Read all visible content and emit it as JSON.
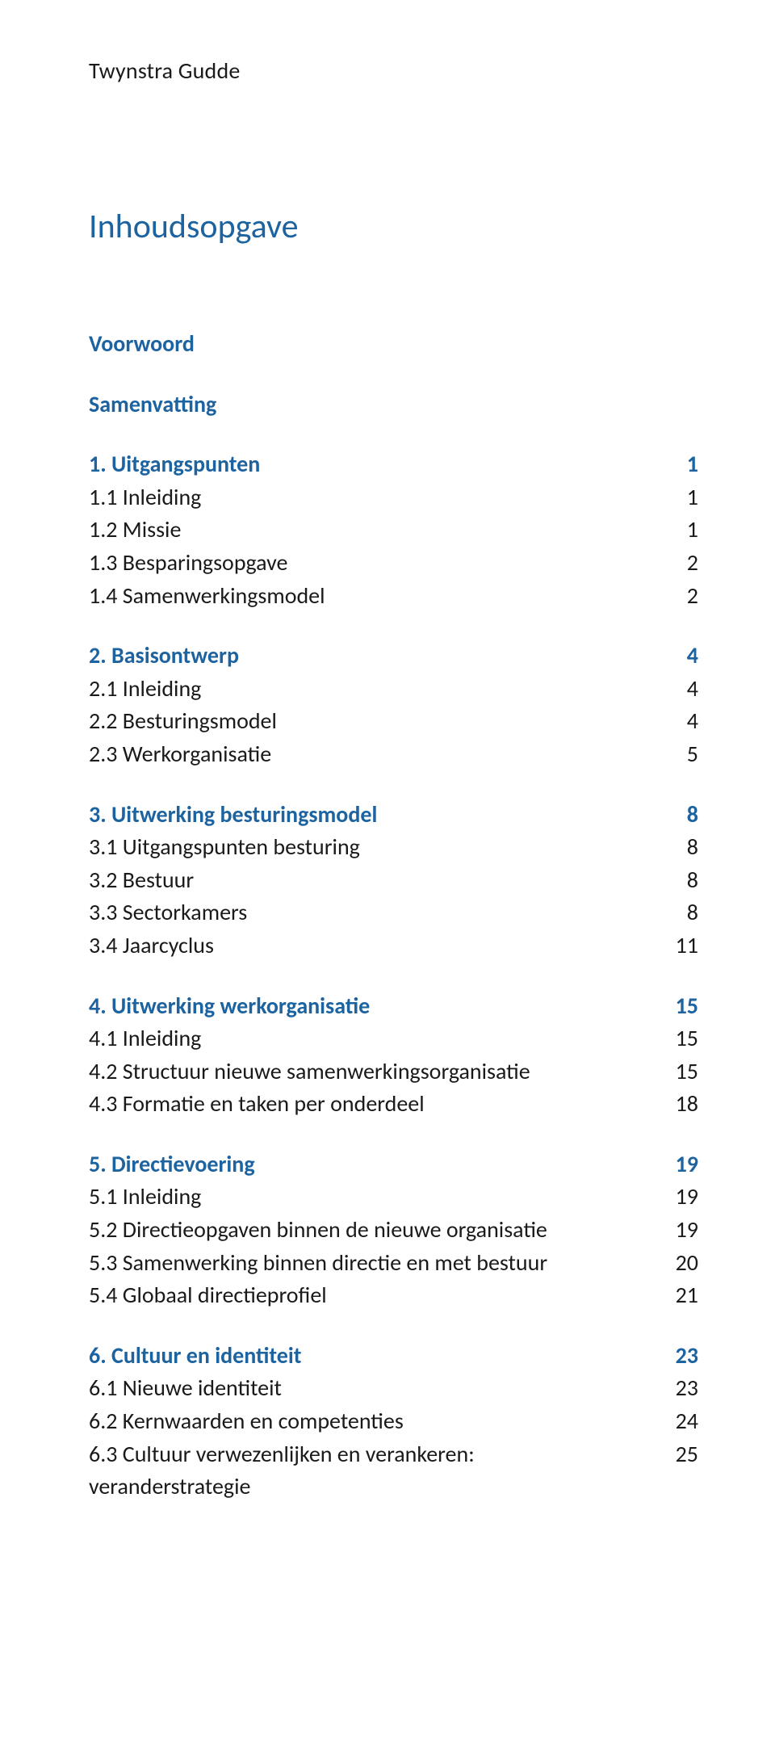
{
  "brand": "Twynstra Gudde",
  "doc_title": "Inhoudsopgave",
  "prelims": [
    {
      "label": "Voorwoord"
    },
    {
      "label": "Samenvatting"
    }
  ],
  "sections": [
    {
      "heading": {
        "label": "1. Uitgangspunten",
        "page": "1"
      },
      "items": [
        {
          "label": "1.1 Inleiding",
          "page": "1"
        },
        {
          "label": "1.2 Missie",
          "page": "1"
        },
        {
          "label": "1.3 Besparingsopgave",
          "page": "2"
        },
        {
          "label": "1.4 Samenwerkingsmodel",
          "page": "2"
        }
      ]
    },
    {
      "heading": {
        "label": "2. Basisontwerp",
        "page": "4"
      },
      "items": [
        {
          "label": "2.1 Inleiding",
          "page": "4"
        },
        {
          "label": "2.2 Besturingsmodel",
          "page": "4"
        },
        {
          "label": "2.3 Werkorganisatie",
          "page": "5"
        }
      ]
    },
    {
      "heading": {
        "label": "3. Uitwerking besturingsmodel",
        "page": "8"
      },
      "items": [
        {
          "label": "3.1 Uitgangspunten besturing",
          "page": "8"
        },
        {
          "label": "3.2 Bestuur",
          "page": "8"
        },
        {
          "label": "3.3 Sectorkamers",
          "page": "8"
        },
        {
          "label": "3.4 Jaarcyclus",
          "page": "11"
        }
      ]
    },
    {
      "heading": {
        "label": "4. Uitwerking werkorganisatie",
        "page": "15"
      },
      "items": [
        {
          "label": "4.1 Inleiding",
          "page": "15"
        },
        {
          "label": "4.2 Structuur nieuwe samenwerkingsorganisatie",
          "page": "15"
        },
        {
          "label": "4.3 Formatie en taken per onderdeel",
          "page": "18"
        }
      ]
    },
    {
      "heading": {
        "label": "5. Directievoering",
        "page": "19"
      },
      "items": [
        {
          "label": "5.1 Inleiding",
          "page": "19"
        },
        {
          "label": "5.2 Directieopgaven binnen de nieuwe organisatie",
          "page": "19"
        },
        {
          "label": "5.3 Samenwerking binnen directie en met bestuur",
          "page": "20"
        },
        {
          "label": "5.4 Globaal directieprofiel",
          "page": "21"
        }
      ]
    },
    {
      "heading": {
        "label": "6. Cultuur en identiteit",
        "page": "23"
      },
      "items": [
        {
          "label": "6.1 Nieuwe identiteit",
          "page": "23"
        },
        {
          "label": "6.2 Kernwaarden en competenties",
          "page": "24"
        },
        {
          "label": "6.3 Cultuur verwezenlijken en verankeren: veranderstrategie",
          "page": "25"
        }
      ]
    }
  ],
  "colors": {
    "heading": "#1c63a0",
    "text": "#1a1a1a",
    "background": "#ffffff"
  },
  "typography": {
    "brand_fontsize": 28,
    "title_fontsize": 42,
    "row_fontsize": 28,
    "section_title_weight": 700,
    "row_weight": 400
  }
}
